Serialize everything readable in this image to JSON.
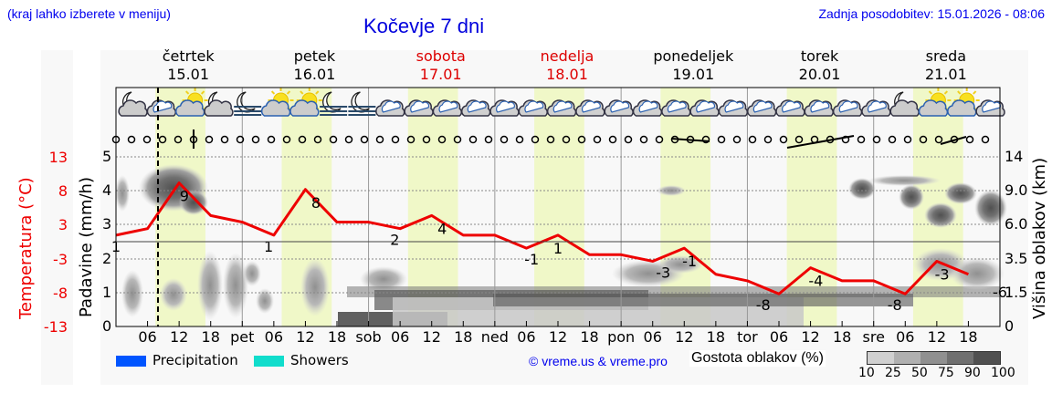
{
  "header": {
    "menu_hint": "(kraj lahko izberete v meniju)",
    "title": "Kočevje 7 dni",
    "last_update": "Zadnja posodobitev: 15.01.2026 - 08:06"
  },
  "days": [
    {
      "name": "četrtek",
      "date": "15.01",
      "weekend": false
    },
    {
      "name": "petek",
      "date": "16.01",
      "weekend": false
    },
    {
      "name": "sobota",
      "date": "17.01",
      "weekend": true
    },
    {
      "name": "nedelja",
      "date": "18.01",
      "weekend": true
    },
    {
      "name": "ponedeljek",
      "date": "19.01",
      "weekend": false
    },
    {
      "name": "torek",
      "date": "20.01",
      "weekend": false
    },
    {
      "name": "sreda",
      "date": "21.01",
      "weekend": false
    }
  ],
  "weather_icons": [
    "moon-cloud",
    "cloud",
    "sun-cloud",
    "moon-cloud",
    "moon-fog",
    "sun-cloud",
    "sun-cloud",
    "moon-fog",
    "moon-fog",
    "cloud",
    "cloud",
    "cloud",
    "cloud",
    "cloud",
    "cloud",
    "cloud",
    "cloud",
    "cloud",
    "cloud",
    "cloud",
    "cloud",
    "cloud",
    "cloud",
    "cloud",
    "cloud",
    "cloud",
    "cloud",
    "moon-cloud",
    "sun-cloud",
    "sun-cloud",
    "cloud"
  ],
  "colors": {
    "temperature_line": "#ee0000",
    "daytime_band": "#f0f8c8",
    "precipitation": "#0055ff",
    "showers": "#11ddcc",
    "title_blue": "#0000dd",
    "weekend_red": "#dd0000"
  },
  "axes": {
    "temperature_title": "Temperatura (°C)",
    "temperature_ticks": [
      "13",
      "8",
      "3",
      "-3",
      "-8",
      "-13"
    ],
    "precip_title": "Padavine (mm/h)",
    "precip_ticks": [
      "5",
      "4",
      "3",
      "2",
      "1",
      "0"
    ],
    "cloud_height_title": "Višina oblakov (km)",
    "cloud_height_ticks": [
      "14",
      "9.0",
      "6.0",
      "3.5",
      "1.5",
      "0"
    ],
    "x_ticks": [
      "06",
      "12",
      "18",
      "pet",
      "06",
      "12",
      "18",
      "sob",
      "06",
      "12",
      "18",
      "ned",
      "06",
      "12",
      "18",
      "pon",
      "06",
      "12",
      "18",
      "tor",
      "06",
      "12",
      "18",
      "sre",
      "06",
      "12",
      "18"
    ]
  },
  "legend": {
    "precipitation": "Precipitation",
    "showers": "Showers",
    "copyright": "© vreme.us & vreme.pro",
    "cloud_density_title": "Gostota oblakov (%)",
    "cloud_density_ticks": [
      "10",
      "25",
      "50",
      "75",
      "90",
      "100"
    ],
    "cloud_density_colors": [
      "#d0d0d0",
      "#b0b0b0",
      "#909090",
      "#707070",
      "#505050"
    ]
  },
  "chart_data": {
    "type": "line",
    "title": "Kočevje 7 dni",
    "xlabel": "",
    "ylabel": "Temperatura (°C)",
    "ylim": [
      -13,
      13
    ],
    "grid": true,
    "x": [
      "15.01 00",
      "15.01 06",
      "15.01 12",
      "15.01 18",
      "16.01 00",
      "16.01 06",
      "16.01 12",
      "16.01 18",
      "17.01 00",
      "17.01 06",
      "17.01 12",
      "17.01 18",
      "18.01 00",
      "18.01 06",
      "18.01 12",
      "18.01 18",
      "19.01 00",
      "19.01 06",
      "19.01 12",
      "19.01 18",
      "20.01 00",
      "20.01 06",
      "20.01 12",
      "20.01 18",
      "21.01 00",
      "21.01 06",
      "21.01 12",
      "21.01 18"
    ],
    "series": [
      {
        "name": "Temperatura (°C)",
        "values": [
          1,
          2,
          9,
          4,
          3,
          1,
          8,
          3,
          3,
          2,
          4,
          1,
          1,
          -1,
          1,
          -2,
          -2,
          -3,
          -1,
          -5,
          -6,
          -8,
          -4,
          -6,
          -6,
          -8,
          -3,
          -5
        ]
      }
    ],
    "annotations": {
      "min_max_labels": [
        {
          "time": "15.01 00",
          "value": "1"
        },
        {
          "time": "15.01 13",
          "value": "9"
        },
        {
          "time": "16.01 05",
          "value": "1"
        },
        {
          "time": "16.01 14",
          "value": "8"
        },
        {
          "time": "17.01 05",
          "value": "2"
        },
        {
          "time": "17.01 14",
          "value": "4"
        },
        {
          "time": "18.01 07",
          "value": "-1"
        },
        {
          "time": "18.01 12",
          "value": "1"
        },
        {
          "time": "19.01 08",
          "value": "-3"
        },
        {
          "time": "19.01 13",
          "value": "-1"
        },
        {
          "time": "20.01 03",
          "value": "-8"
        },
        {
          "time": "20.01 13",
          "value": "-4"
        },
        {
          "time": "21.01 04",
          "value": "-8"
        },
        {
          "time": "21.01 13",
          "value": "-3"
        },
        {
          "time": "21.01 24",
          "value": "-6"
        }
      ],
      "current_time_marker": "15.01 08:06"
    },
    "secondary_axes": {
      "precipitation_mm_h": {
        "range": [
          0,
          5
        ],
        "values": "none visible"
      },
      "cloud_height_km": {
        "ticks": [
          0,
          1.5,
          3.5,
          6.0,
          9.0,
          14
        ]
      }
    },
    "legend_position": "bottom"
  }
}
